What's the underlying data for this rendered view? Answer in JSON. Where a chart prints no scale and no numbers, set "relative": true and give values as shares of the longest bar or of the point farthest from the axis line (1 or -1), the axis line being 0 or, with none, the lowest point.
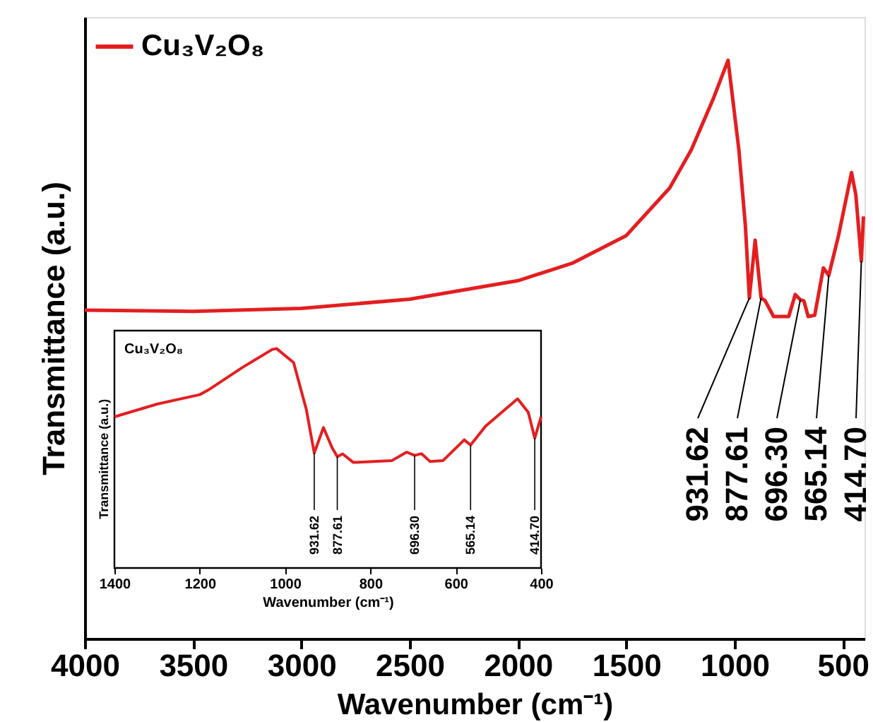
{
  "chart_data": [
    {
      "type": "line",
      "xlabel": "Wavenumber (cm⁻¹)",
      "ylabel": "Transmittance (a.u.)",
      "relative": true,
      "legend": "top left",
      "xlim": [
        4000,
        400
      ],
      "xticks": [
        4000,
        3500,
        3000,
        2500,
        2000,
        1500,
        1000,
        500
      ],
      "series": [
        {
          "name": "Cu₃V₂O₈",
          "color": "#e41e20",
          "x": [
            4000,
            3500,
            3000,
            2500,
            2000,
            1750,
            1500,
            1300,
            1200,
            1100,
            1030,
            980,
            950,
            931.62,
            905,
            877.61,
            860,
            820,
            750,
            720,
            696.3,
            680,
            660,
            630,
            590,
            565.14,
            520,
            460,
            440,
            414.7,
            405
          ],
          "values": [
            0.568,
            0.566,
            0.571,
            0.587,
            0.619,
            0.649,
            0.697,
            0.779,
            0.845,
            0.932,
            1.0,
            0.845,
            0.714,
            0.589,
            0.689,
            0.589,
            0.585,
            0.557,
            0.557,
            0.595,
            0.586,
            0.584,
            0.557,
            0.559,
            0.641,
            0.628,
            0.697,
            0.806,
            0.767,
            0.653,
            0.73
          ]
        }
      ],
      "annotations": [
        {
          "text": "931.62",
          "x": 931.62,
          "y": 0.589
        },
        {
          "text": "877.61",
          "x": 877.61,
          "y": 0.589
        },
        {
          "text": "696.30",
          "x": 696.3,
          "y": 0.586
        },
        {
          "text": "565.14",
          "x": 565.14,
          "y": 0.628
        },
        {
          "text": "414.70",
          "x": 414.7,
          "y": 0.653
        }
      ]
    },
    {
      "type": "line",
      "title": "Cu₃V₂O₈",
      "xlabel": "Wavenumber (cm⁻¹)",
      "ylabel": "Transmittance (a.u.)",
      "relative": true,
      "xlim": [
        1400,
        400
      ],
      "xticks": [
        1400,
        1200,
        1000,
        800,
        600,
        400
      ],
      "series": [
        {
          "color": "#e41e20",
          "x": [
            1400,
            1300,
            1200,
            1180,
            1100,
            1030,
            1020,
            980,
            950,
            931.62,
            910,
            890,
            877.61,
            865,
            840,
            750,
            715,
            696.3,
            680,
            660,
            630,
            580,
            565.14,
            530,
            455,
            430,
            414.7,
            400
          ],
          "values": [
            0.689,
            0.747,
            0.79,
            0.811,
            0.914,
            0.996,
            1.0,
            0.936,
            0.721,
            0.524,
            0.64,
            0.549,
            0.507,
            0.52,
            0.481,
            0.489,
            0.528,
            0.513,
            0.521,
            0.485,
            0.489,
            0.584,
            0.56,
            0.646,
            0.771,
            0.71,
            0.592,
            0.689
          ]
        }
      ],
      "annotations": [
        {
          "text": "931.62",
          "x": 931.62,
          "y": 0.524
        },
        {
          "text": "877.61",
          "x": 877.61,
          "y": 0.507
        },
        {
          "text": "696.30",
          "x": 696.3,
          "y": 0.513
        },
        {
          "text": "565.14",
          "x": 565.14,
          "y": 0.56
        },
        {
          "text": "414.70",
          "x": 414.7,
          "y": 0.592
        }
      ]
    }
  ]
}
